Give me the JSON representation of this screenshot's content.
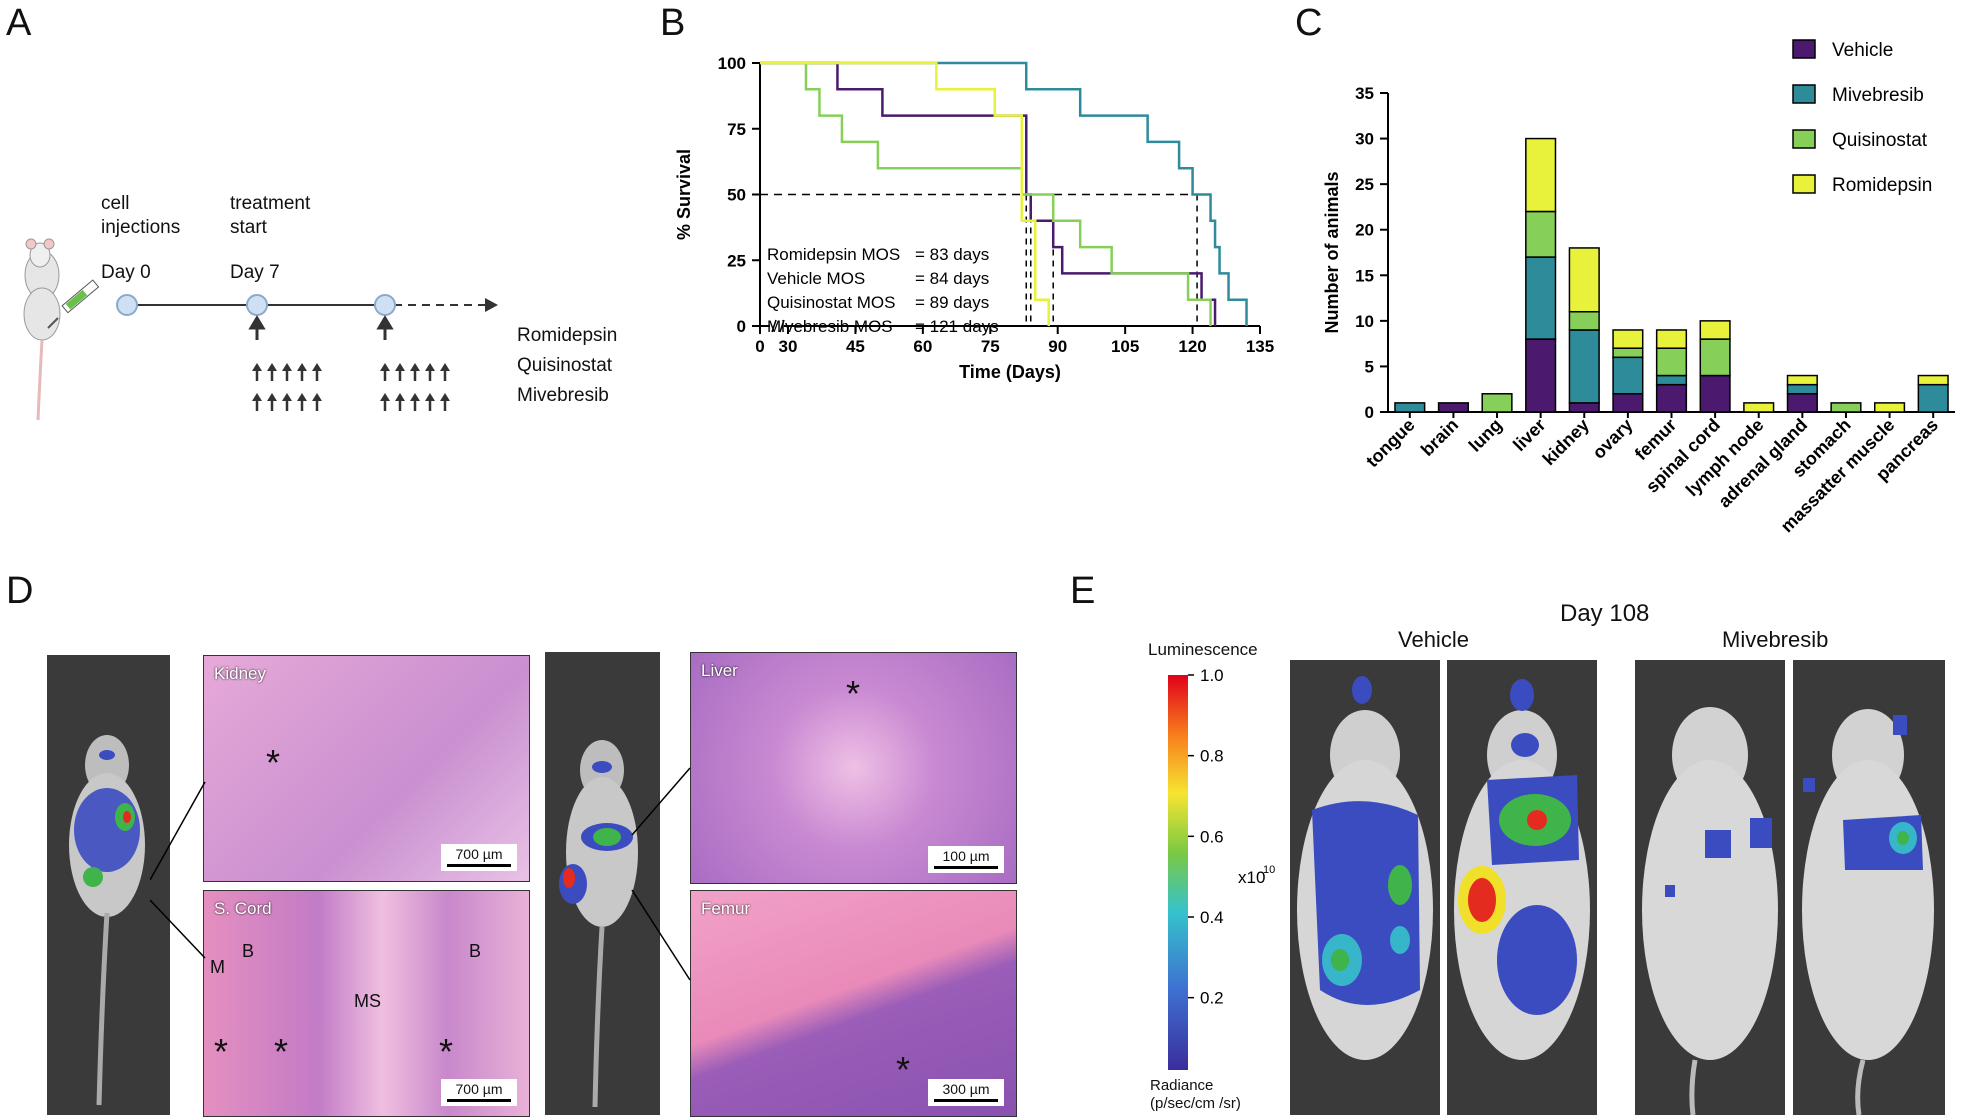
{
  "panels": {
    "a": "A",
    "b": "B",
    "c": "C",
    "d": "D",
    "e": "E"
  },
  "timeline": {
    "cell_injections": "cell\ninjections",
    "treatment_start": "treatment\nstart",
    "day0": "Day 0",
    "day7": "Day 7",
    "drugs": [
      "Romidepsin",
      "Quisinostat",
      "Mivebresib"
    ]
  },
  "colors": {
    "vehicle": "#4b1a6e",
    "mivebresib": "#2e8b9a",
    "quisinostat": "#86d05a",
    "romidepsin": "#e8f23a"
  },
  "chart_data": [
    {
      "type": "line",
      "title": "",
      "xlabel": "Time (Days)",
      "ylabel": "% Survival",
      "xlim": [
        0,
        135
      ],
      "ylim": [
        0,
        100
      ],
      "xticks": [
        0,
        30,
        45,
        60,
        75,
        90,
        105,
        120,
        135
      ],
      "yticks": [
        0,
        25,
        50,
        75,
        100
      ],
      "mos": [
        {
          "drug": "Romidepsin MOS",
          "value": "= 83 days"
        },
        {
          "drug": "Vehicle MOS",
          "value": "= 84  days"
        },
        {
          "drug": "Quisinostat MOS",
          "value": "= 89 days"
        },
        {
          "drug": "Mivebresib MOS",
          "value": "= 121 days"
        }
      ],
      "median_lines": [
        83,
        84,
        89,
        121
      ],
      "series": [
        {
          "name": "Vehicle",
          "color": "#4b1a6e",
          "steps": [
            [
              0,
              100
            ],
            [
              41,
              100
            ],
            [
              41,
              90
            ],
            [
              51,
              90
            ],
            [
              51,
              80
            ],
            [
              83,
              80
            ],
            [
              83,
              50
            ],
            [
              84,
              50
            ],
            [
              84,
              40
            ],
            [
              89,
              40
            ],
            [
              89,
              30
            ],
            [
              91,
              30
            ],
            [
              91,
              20
            ],
            [
              122,
              20
            ],
            [
              122,
              10
            ],
            [
              125,
              10
            ],
            [
              125,
              0
            ]
          ]
        },
        {
          "name": "Mivebresib",
          "color": "#2e8b9a",
          "steps": [
            [
              0,
              100
            ],
            [
              83,
              100
            ],
            [
              83,
              90
            ],
            [
              95,
              90
            ],
            [
              95,
              80
            ],
            [
              110,
              80
            ],
            [
              110,
              70
            ],
            [
              117,
              70
            ],
            [
              117,
              60
            ],
            [
              120,
              60
            ],
            [
              120,
              50
            ],
            [
              124,
              50
            ],
            [
              124,
              40
            ],
            [
              125,
              40
            ],
            [
              125,
              30
            ],
            [
              126,
              30
            ],
            [
              126,
              20
            ],
            [
              128,
              20
            ],
            [
              128,
              10
            ],
            [
              132,
              10
            ],
            [
              132,
              0
            ]
          ]
        },
        {
          "name": "Quisinostat",
          "color": "#86d05a",
          "steps": [
            [
              0,
              100
            ],
            [
              34,
              100
            ],
            [
              34,
              90
            ],
            [
              37,
              90
            ],
            [
              37,
              80
            ],
            [
              42,
              80
            ],
            [
              42,
              70
            ],
            [
              50,
              70
            ],
            [
              50,
              60
            ],
            [
              82,
              60
            ],
            [
              82,
              50
            ],
            [
              89,
              50
            ],
            [
              89,
              40
            ],
            [
              95,
              40
            ],
            [
              95,
              30
            ],
            [
              102,
              30
            ],
            [
              102,
              20
            ],
            [
              119,
              20
            ],
            [
              119,
              10
            ],
            [
              124,
              10
            ],
            [
              124,
              0
            ]
          ]
        },
        {
          "name": "Romidepsin",
          "color": "#e8f23a",
          "steps": [
            [
              0,
              100
            ],
            [
              63,
              100
            ],
            [
              63,
              90
            ],
            [
              76,
              90
            ],
            [
              76,
              80
            ],
            [
              82,
              80
            ],
            [
              82,
              40
            ],
            [
              85,
              40
            ],
            [
              85,
              10
            ],
            [
              88,
              10
            ],
            [
              88,
              0
            ]
          ]
        }
      ]
    },
    {
      "type": "bar",
      "stacked": true,
      "title": "",
      "xlabel": "",
      "ylabel": "Number of animals",
      "ylim": [
        0,
        35
      ],
      "yticks": [
        0,
        5,
        10,
        15,
        20,
        25,
        30,
        35
      ],
      "categories": [
        "tongue",
        "brain",
        "lung",
        "liver",
        "kidney",
        "ovary",
        "femur",
        "spinal cord",
        "lymph node",
        "adrenal gland",
        "stomach",
        "massatter muscle",
        "pancreas"
      ],
      "series": [
        {
          "name": "Vehicle",
          "color": "#4b1a6e",
          "values": [
            0,
            1,
            0,
            8,
            1,
            2,
            3,
            4,
            0,
            2,
            0,
            0,
            0
          ]
        },
        {
          "name": "Mivebresib",
          "color": "#2e8b9a",
          "values": [
            1,
            0,
            0,
            9,
            8,
            4,
            1,
            0,
            0,
            1,
            0,
            0,
            3
          ]
        },
        {
          "name": "Quisinostat",
          "color": "#86d05a",
          "values": [
            0,
            0,
            2,
            5,
            2,
            1,
            3,
            4,
            0,
            0,
            1,
            0,
            0
          ]
        },
        {
          "name": "Romidepsin",
          "color": "#e8f23a",
          "values": [
            0,
            0,
            0,
            8,
            7,
            2,
            2,
            2,
            1,
            1,
            0,
            1,
            1
          ]
        }
      ],
      "legend": [
        "Vehicle",
        "Mivebresib",
        "Quisinostat",
        "Romidepsin"
      ]
    }
  ],
  "histology": {
    "kidney": "Kidney",
    "kidney_scale": "700 µm",
    "scord": "S. Cord",
    "scord_scale": "700 µm",
    "liver": "Liver",
    "liver_scale": "100 µm",
    "femur": "Femur",
    "femur_scale": "300 µm",
    "m": "M",
    "b": "B",
    "ms": "MS",
    "asterisk": "*"
  },
  "imaging": {
    "day": "Day 108",
    "vehicle": "Vehicle",
    "mivebresib": "Mivebresib",
    "lum_title": "Luminescence",
    "colorbar_ticks": [
      "1.0",
      "0.8",
      "0.6",
      "0.4",
      "0.2"
    ],
    "exponent": "x10",
    "exponent_power": "10",
    "radiance": "Radiance\n(p/sec/cm /sr)"
  }
}
